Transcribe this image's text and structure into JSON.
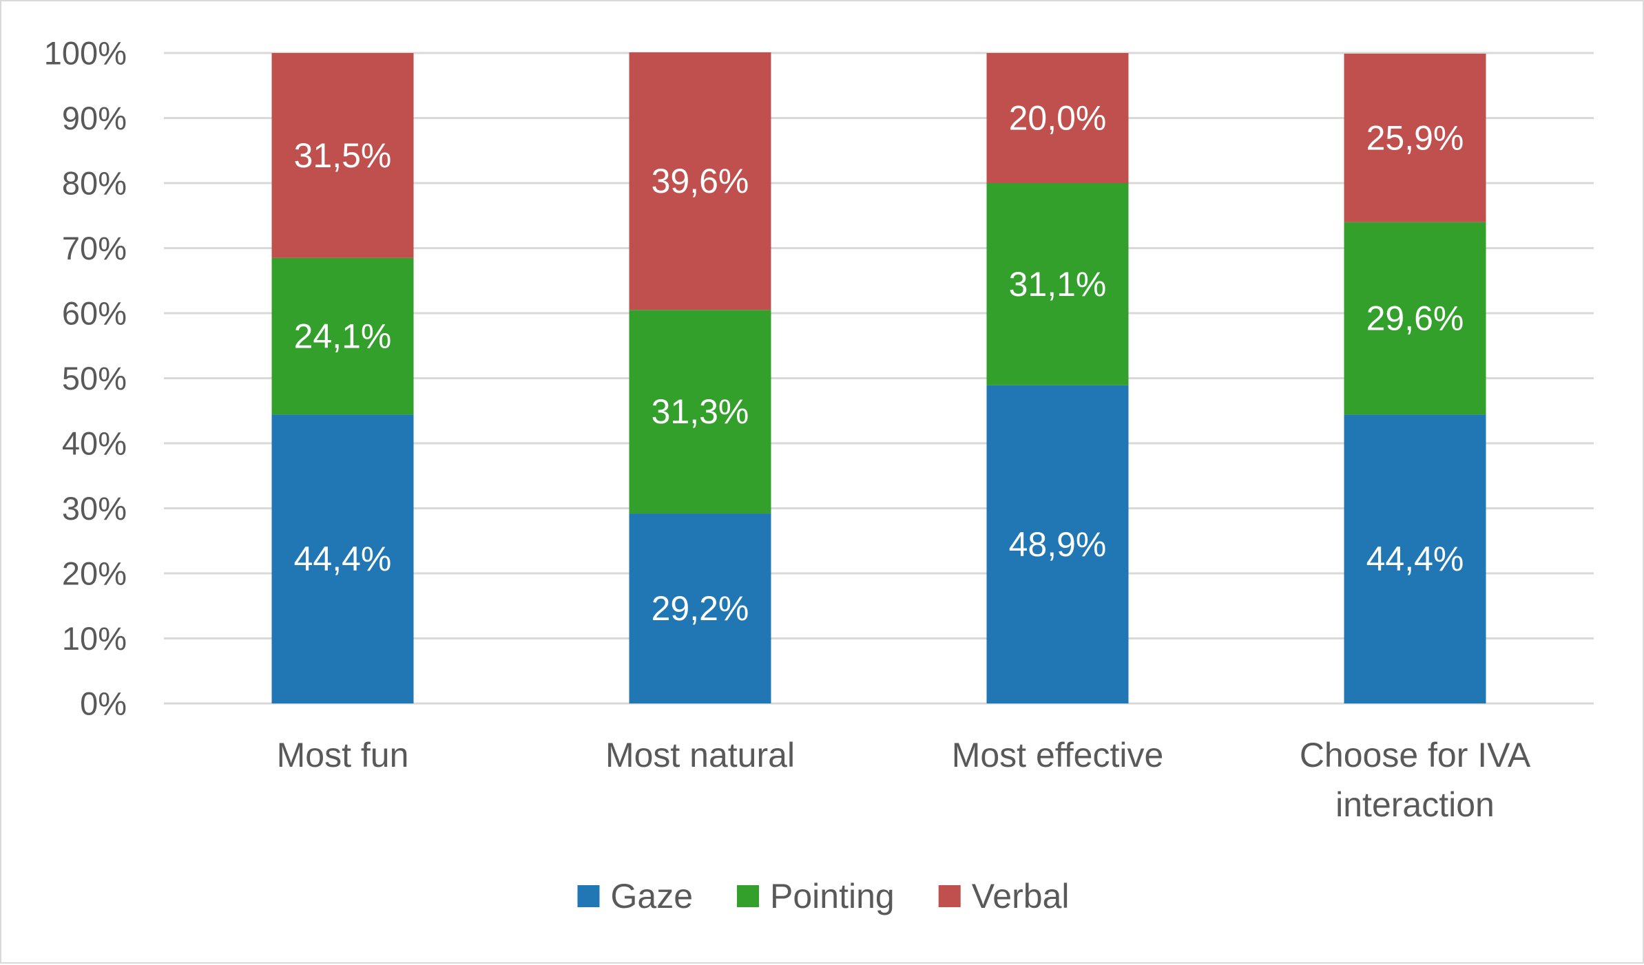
{
  "chart_data": {
    "type": "bar",
    "stacked": true,
    "title": "",
    "xlabel": "",
    "ylabel": "",
    "categories": [
      [
        "Most fun"
      ],
      [
        "Most natural"
      ],
      [
        "Most effective"
      ],
      [
        "Choose for IVA",
        "interaction"
      ]
    ],
    "series": [
      {
        "name": "Gaze",
        "color": "#2077b4",
        "values": [
          44.4,
          29.2,
          48.9,
          44.4
        ],
        "labels": [
          "44,4%",
          "29,2%",
          "48,9%",
          "44,4%"
        ]
      },
      {
        "name": "Pointing",
        "color": "#33a02c",
        "values": [
          24.1,
          31.3,
          31.1,
          29.6
        ],
        "labels": [
          "24,1%",
          "31,3%",
          "31,1%",
          "29,6%"
        ]
      },
      {
        "name": "Verbal",
        "color": "#c0504d",
        "values": [
          31.5,
          39.6,
          20.0,
          25.9
        ],
        "labels": [
          "31,5%",
          "39,6%",
          "20,0%",
          "25,9%"
        ]
      }
    ],
    "ylim": [
      0,
      100
    ],
    "yticks": [
      0,
      10,
      20,
      30,
      40,
      50,
      60,
      70,
      80,
      90,
      100
    ],
    "ytick_labels": [
      "0%",
      "10%",
      "20%",
      "30%",
      "40%",
      "50%",
      "60%",
      "70%",
      "80%",
      "90%",
      "100%"
    ],
    "grid": true,
    "grid_color": "#d9d9d9",
    "legend": "bottom-center"
  }
}
